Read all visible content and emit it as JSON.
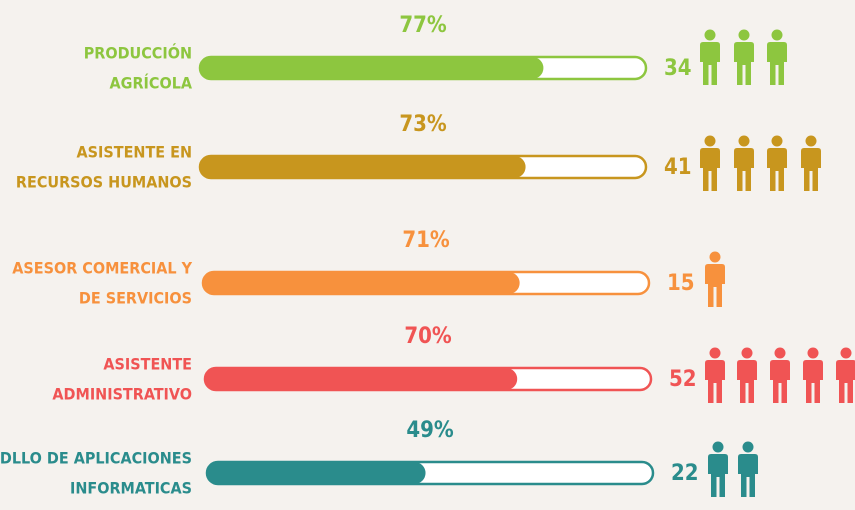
{
  "chart_data": {
    "type": "bar",
    "categories": [
      [
        "PRODUCCIÓN",
        "AGRÍCOLA"
      ],
      [
        "ASISTENTE EN",
        "RECURSOS HUMANOS"
      ],
      [
        "ASESOR COMERCIAL Y",
        "DE SERVICIOS"
      ],
      [
        "ASISTENTE",
        "ADMINISTRATIVO"
      ],
      [
        "DLLO DE APLICACIONES",
        "INFORMATICAS"
      ]
    ],
    "values": [
      77,
      73,
      71,
      70,
      49
    ],
    "value_labels": [
      "77%",
      "73%",
      "71%",
      "70%",
      "49%"
    ],
    "counts": [
      34,
      41,
      15,
      52,
      22
    ],
    "colors": [
      "#8dc63f",
      "#c8961e",
      "#f7913d",
      "#f05454",
      "#2a8c8c"
    ],
    "xlim": [
      0,
      100
    ]
  }
}
